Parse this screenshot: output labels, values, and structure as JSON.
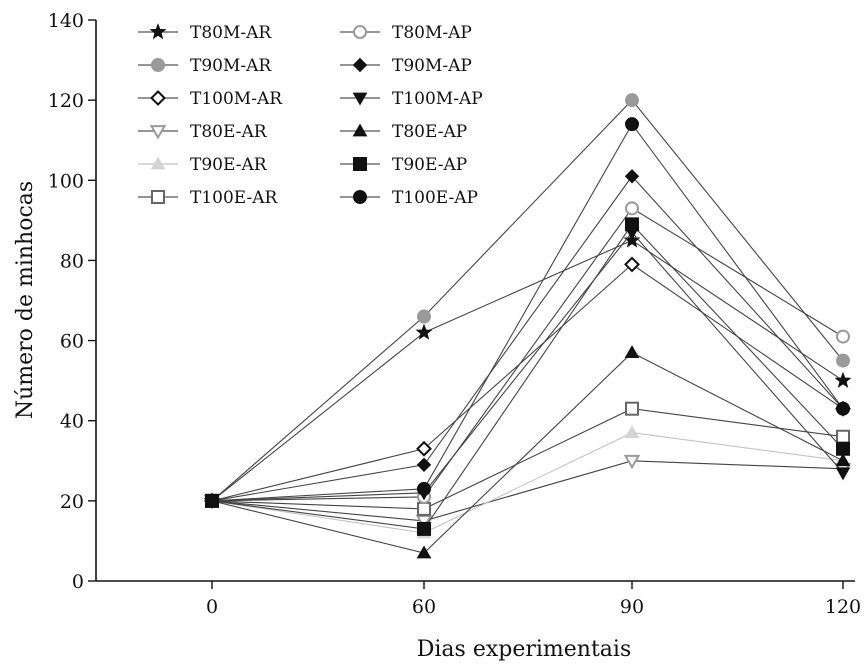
{
  "chart_data": {
    "type": "line",
    "title": "",
    "xlabel": "Dias experimentais",
    "ylabel": "Número de minhocas",
    "x": [
      0,
      60,
      90,
      120
    ],
    "x_ticks": [
      "0",
      "60",
      "90",
      "120"
    ],
    "ylim": [
      0,
      140
    ],
    "y_ticks": [
      "0",
      "20",
      "40",
      "60",
      "80",
      "100",
      "120",
      "140"
    ],
    "grid": false,
    "legend_position": "top-left, two columns",
    "series": [
      {
        "name": "T80M-AR",
        "marker": "star",
        "color": "#111111",
        "values": [
          20,
          62,
          85,
          50
        ]
      },
      {
        "name": "T90M-AR",
        "marker": "circle-filled",
        "color": "#9a9a9a",
        "values": [
          20,
          66,
          120,
          55
        ]
      },
      {
        "name": "T100M-AR",
        "marker": "diamond-open",
        "color": "#111111",
        "values": [
          20,
          33,
          79,
          43
        ]
      },
      {
        "name": "T80E-AR",
        "marker": "triangle-down-open",
        "color": "#9a9a9a",
        "values": [
          20,
          15,
          30,
          28
        ]
      },
      {
        "name": "T90E-AR",
        "marker": "triangle-up-filled",
        "color": "#d4d4d4",
        "values": [
          20,
          12,
          37,
          30
        ]
      },
      {
        "name": "T100E-AR",
        "marker": "square-open",
        "color": "#666666",
        "values": [
          20,
          18,
          43,
          36
        ]
      },
      {
        "name": "T80M-AP",
        "marker": "circle-open",
        "color": "#9a9a9a",
        "values": [
          20,
          21,
          93,
          61
        ]
      },
      {
        "name": "T90M-AP",
        "marker": "diamond-filled",
        "color": "#111111",
        "values": [
          20,
          29,
          101,
          43
        ]
      },
      {
        "name": "T100M-AP",
        "marker": "triangle-down-filled",
        "color": "#111111",
        "values": [
          20,
          22,
          87,
          27
        ]
      },
      {
        "name": "T80E-AP",
        "marker": "triangle-up-filled",
        "color": "#111111",
        "values": [
          20,
          7,
          57,
          30
        ]
      },
      {
        "name": "T90E-AP",
        "marker": "square-filled",
        "color": "#111111",
        "values": [
          20,
          13,
          89,
          33
        ]
      },
      {
        "name": "T100E-AP",
        "marker": "circle-filled",
        "color": "#111111",
        "values": [
          20,
          23,
          114,
          43
        ]
      }
    ]
  }
}
